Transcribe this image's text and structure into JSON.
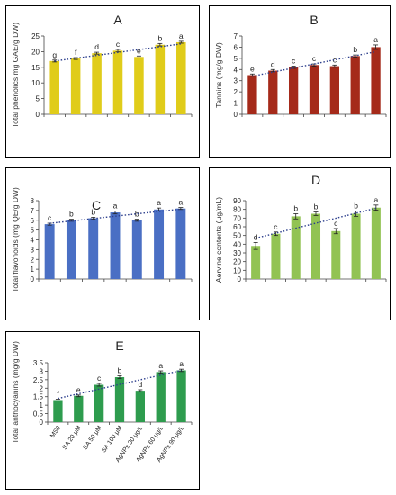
{
  "chart_data": [
    {
      "id": "A",
      "type": "bar",
      "panel_label": "A",
      "ylabel": "Total phenolics mg GAE/g DW)",
      "ylim": [
        0,
        25
      ],
      "yticks": [
        0,
        5,
        10,
        15,
        20,
        25
      ],
      "values": [
        17,
        17.8,
        19.5,
        20.3,
        18.3,
        22.2,
        23
      ],
      "errors": [
        0.3,
        0.3,
        0.3,
        0.4,
        0.3,
        0.4,
        0.3
      ],
      "letters": [
        "g",
        "f",
        "d",
        "c",
        "e",
        "b",
        "a"
      ],
      "bar_color": "#e0cc1a",
      "grid": false,
      "trendline": true
    },
    {
      "id": "B",
      "type": "bar",
      "panel_label": "B",
      "ylabel": "Tannins (mg/g DW)",
      "ylim": [
        0,
        7
      ],
      "yticks": [
        0,
        1,
        2,
        3,
        4,
        5,
        6,
        7
      ],
      "values": [
        3.5,
        3.9,
        4.2,
        4.4,
        4.3,
        5.2,
        6.0
      ],
      "errors": [
        0.1,
        0.1,
        0.1,
        0.1,
        0.1,
        0.1,
        0.2
      ],
      "letters": [
        "e",
        "d",
        "c",
        "c",
        "c",
        "b",
        "a"
      ],
      "bar_color": "#a52a1a",
      "grid": false,
      "trendline": true
    },
    {
      "id": "C",
      "type": "bar",
      "panel_label": "C",
      "ylabel": "Total flavonoids (mg QE/g DW)",
      "ylim": [
        0,
        8
      ],
      "yticks": [
        0,
        1,
        2,
        3,
        4,
        5,
        6,
        7,
        8
      ],
      "values": [
        5.6,
        6.0,
        6.2,
        6.8,
        6.0,
        7.1,
        7.2
      ],
      "errors": [
        0.1,
        0.1,
        0.1,
        0.15,
        0.1,
        0.15,
        0.1
      ],
      "letters": [
        "c",
        "b",
        "b",
        "a",
        "b",
        "a",
        "a"
      ],
      "bar_color": "#4a6fc4",
      "grid": false,
      "trendline": true
    },
    {
      "id": "D",
      "type": "bar",
      "panel_label": "D",
      "ylabel": "Aervine contents (μg/mL)",
      "ylim": [
        0,
        90
      ],
      "yticks": [
        0,
        10,
        20,
        30,
        40,
        50,
        60,
        70,
        80,
        90
      ],
      "values": [
        38,
        52,
        72,
        75,
        55,
        75,
        82
      ],
      "errors": [
        4,
        2,
        3,
        2,
        3,
        3,
        3
      ],
      "letters": [
        "d",
        "c",
        "b",
        "b",
        "c",
        "b",
        "a"
      ],
      "bar_color": "#92c353",
      "grid": false,
      "trendline": true
    },
    {
      "id": "E",
      "type": "bar",
      "panel_label": "E",
      "ylabel": "Total anthocyanins (mg/g DW)",
      "ylim": [
        0,
        3.5
      ],
      "yticks": [
        0,
        0.5,
        1,
        1.5,
        2,
        2.5,
        3,
        3.5
      ],
      "categories": [
        "MS0",
        "SA 20 μM",
        "SA 50 μM",
        "SA 100 μM",
        "AgNPs 30 μg/L",
        "AgNPs 60 μg/L",
        "AgNPs 90 μg/L"
      ],
      "values": [
        1.3,
        1.55,
        2.2,
        2.65,
        1.85,
        2.95,
        3.05
      ],
      "errors": [
        0.05,
        0.05,
        0.08,
        0.08,
        0.06,
        0.07,
        0.07
      ],
      "letters": [
        "f",
        "e",
        "c",
        "b",
        "d",
        "a",
        "a"
      ],
      "bar_color": "#2e9c4e",
      "grid": false,
      "trendline": true
    }
  ]
}
